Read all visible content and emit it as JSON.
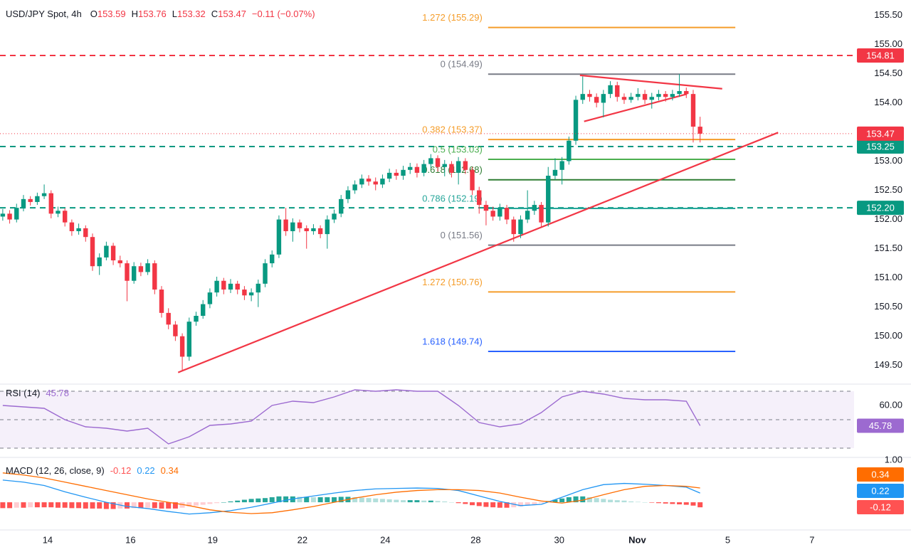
{
  "chart_data": [
    {
      "type": "candlestick",
      "symbol": "USD/JPY Spot, 4h",
      "header_labels": [
        "O",
        "H",
        "L",
        "C"
      ],
      "change": "−0.11 (−0.07%)",
      "up_color": "#089981",
      "down_color": "#f23645",
      "ohlc": [
        [
          152.05,
          152.18,
          151.98,
          152.1
        ],
        [
          152.1,
          152.16,
          151.93,
          152.0
        ],
        [
          152.0,
          152.27,
          151.95,
          152.2
        ],
        [
          152.2,
          152.42,
          152.14,
          152.35
        ],
        [
          152.35,
          152.4,
          152.24,
          152.3
        ],
        [
          152.3,
          152.46,
          152.25,
          152.4
        ],
        [
          152.4,
          152.6,
          152.35,
          152.45
        ],
        [
          152.45,
          152.5,
          152.02,
          152.1
        ],
        [
          152.1,
          152.22,
          152.04,
          152.15
        ],
        [
          152.15,
          152.19,
          151.88,
          151.95
        ],
        [
          151.95,
          152.0,
          151.72,
          151.8
        ],
        [
          151.8,
          151.93,
          151.74,
          151.85
        ],
        [
          151.85,
          151.9,
          151.62,
          151.7
        ],
        [
          151.7,
          151.76,
          151.12,
          151.2
        ],
        [
          151.2,
          151.42,
          151.05,
          151.35
        ],
        [
          151.35,
          151.62,
          151.3,
          151.55
        ],
        [
          151.55,
          151.6,
          151.22,
          151.3
        ],
        [
          151.3,
          151.38,
          151.18,
          151.25
        ],
        [
          151.25,
          151.3,
          150.6,
          150.95
        ],
        [
          150.95,
          151.27,
          150.9,
          151.2
        ],
        [
          151.2,
          151.26,
          151.03,
          151.1
        ],
        [
          151.1,
          151.32,
          151.05,
          151.25
        ],
        [
          151.25,
          151.3,
          150.72,
          150.8
        ],
        [
          150.8,
          150.86,
          150.32,
          150.4
        ],
        [
          150.4,
          150.48,
          150.12,
          150.2
        ],
        [
          150.2,
          150.26,
          149.92,
          150.0
        ],
        [
          150.0,
          150.05,
          149.42,
          149.65
        ],
        [
          149.65,
          150.32,
          149.58,
          150.25
        ],
        [
          150.25,
          150.42,
          150.18,
          150.35
        ],
        [
          150.35,
          150.62,
          150.3,
          150.55
        ],
        [
          150.55,
          150.82,
          150.48,
          150.75
        ],
        [
          150.75,
          151.02,
          150.68,
          150.95
        ],
        [
          150.95,
          151.0,
          150.72,
          150.8
        ],
        [
          150.8,
          150.98,
          150.74,
          150.9
        ],
        [
          150.9,
          150.95,
          150.72,
          150.8
        ],
        [
          150.8,
          150.86,
          150.62,
          150.7
        ],
        [
          150.7,
          150.82,
          150.6,
          150.75
        ],
        [
          150.75,
          150.97,
          150.5,
          150.9
        ],
        [
          150.9,
          151.32,
          150.84,
          151.25
        ],
        [
          151.25,
          151.47,
          151.18,
          151.4
        ],
        [
          151.4,
          152.07,
          151.34,
          152.0
        ],
        [
          152.0,
          152.2,
          151.72,
          151.8
        ],
        [
          151.8,
          152.02,
          151.62,
          151.95
        ],
        [
          151.95,
          152.0,
          151.78,
          151.85
        ],
        [
          151.85,
          151.9,
          151.5,
          151.8
        ],
        [
          151.8,
          151.92,
          151.74,
          151.85
        ],
        [
          151.85,
          151.9,
          151.68,
          151.75
        ],
        [
          151.75,
          152.07,
          151.5,
          152.0
        ],
        [
          152.0,
          152.17,
          151.94,
          152.1
        ],
        [
          152.1,
          152.42,
          152.04,
          152.35
        ],
        [
          152.35,
          152.57,
          152.28,
          152.5
        ],
        [
          152.5,
          152.67,
          152.44,
          152.6
        ],
        [
          152.6,
          152.77,
          152.54,
          152.7
        ],
        [
          152.7,
          152.76,
          152.58,
          152.65
        ],
        [
          152.65,
          152.72,
          152.5,
          152.6
        ],
        [
          152.6,
          152.77,
          152.54,
          152.7
        ],
        [
          152.7,
          152.87,
          152.64,
          152.8
        ],
        [
          152.8,
          152.86,
          152.68,
          152.75
        ],
        [
          152.75,
          152.92,
          152.68,
          152.85
        ],
        [
          152.85,
          152.97,
          152.78,
          152.9
        ],
        [
          152.9,
          152.96,
          152.72,
          152.8
        ],
        [
          152.8,
          153.02,
          152.74,
          152.95
        ],
        [
          152.95,
          153.12,
          152.88,
          153.05
        ],
        [
          153.05,
          153.1,
          152.82,
          152.9
        ],
        [
          152.9,
          153.02,
          152.74,
          152.95
        ],
        [
          152.95,
          153.0,
          152.72,
          152.8
        ],
        [
          152.8,
          153.07,
          152.6,
          153.0
        ],
        [
          153.0,
          153.05,
          152.78,
          152.85
        ],
        [
          152.85,
          152.9,
          152.42,
          152.5
        ],
        [
          152.5,
          152.56,
          152.1,
          152.25
        ],
        [
          152.25,
          152.32,
          151.9,
          152.15
        ],
        [
          152.15,
          152.22,
          151.98,
          152.05
        ],
        [
          152.05,
          152.27,
          151.98,
          152.2
        ],
        [
          152.2,
          152.25,
          151.92,
          152.0
        ],
        [
          152.0,
          152.05,
          151.62,
          151.75
        ],
        [
          151.75,
          152.07,
          151.68,
          152.0
        ],
        [
          152.0,
          152.5,
          151.94,
          152.15
        ],
        [
          152.15,
          152.32,
          152.08,
          152.25
        ],
        [
          152.25,
          152.3,
          151.88,
          151.95
        ],
        [
          151.95,
          152.9,
          151.88,
          152.75
        ],
        [
          152.75,
          153.05,
          152.68,
          152.85
        ],
        [
          152.85,
          153.07,
          152.6,
          153.0
        ],
        [
          153.0,
          153.42,
          152.94,
          153.35
        ],
        [
          153.35,
          154.12,
          153.28,
          154.05
        ],
        [
          154.05,
          154.45,
          153.98,
          154.15
        ],
        [
          154.15,
          154.22,
          154.02,
          154.1
        ],
        [
          154.1,
          154.16,
          153.92,
          154.0
        ],
        [
          154.0,
          154.22,
          153.75,
          154.15
        ],
        [
          154.15,
          154.37,
          154.08,
          154.3
        ],
        [
          154.3,
          154.36,
          154.02,
          154.1
        ],
        [
          154.1,
          154.16,
          153.98,
          154.05
        ],
        [
          154.05,
          154.17,
          154.0,
          154.1
        ],
        [
          154.1,
          154.25,
          154.04,
          154.15
        ],
        [
          154.15,
          154.22,
          153.98,
          154.05
        ],
        [
          154.05,
          154.17,
          153.9,
          154.1
        ],
        [
          154.1,
          154.22,
          154.04,
          154.15
        ],
        [
          154.15,
          154.2,
          154.02,
          154.1
        ],
        [
          154.1,
          154.22,
          154.04,
          154.15
        ],
        [
          154.15,
          154.49,
          154.1,
          154.2
        ],
        [
          154.2,
          154.26,
          154.08,
          154.15
        ],
        [
          154.15,
          154.22,
          153.32,
          153.59
        ],
        [
          153.59,
          153.76,
          153.32,
          153.47
        ]
      ],
      "xlim": [
        -0.4,
        123.3
      ],
      "xticks": [
        {
          "value": 6.5,
          "label": "14"
        },
        {
          "value": 18.5,
          "label": "16"
        },
        {
          "value": 30.4,
          "label": "19"
        },
        {
          "value": 43.4,
          "label": "22"
        },
        {
          "value": 55.4,
          "label": "24"
        },
        {
          "value": 68.5,
          "label": "28"
        },
        {
          "value": 80.6,
          "label": "30"
        },
        {
          "value": 91.9,
          "label": "Nov"
        },
        {
          "value": 105,
          "label": "5"
        },
        {
          "value": 117.2,
          "label": "7"
        }
      ],
      "ylim": [
        149.18,
        155.76
      ],
      "yticks": [
        {
          "value": 149.5,
          "label": "149.50"
        },
        {
          "value": 150,
          "label": "150.00"
        },
        {
          "value": 150.5,
          "label": "150.50"
        },
        {
          "value": 151,
          "label": "151.00"
        },
        {
          "value": 151.5,
          "label": "151.50"
        },
        {
          "value": 152,
          "label": "152.00"
        },
        {
          "value": 152.5,
          "label": "152.50"
        },
        {
          "value": 153,
          "label": "153.00"
        },
        {
          "value": 154,
          "label": "154.00"
        },
        {
          "value": 154.5,
          "label": "154.50"
        },
        {
          "value": 155,
          "label": "155.00"
        },
        {
          "value": 155.5,
          "label": "155.50"
        }
      ],
      "price_lines": [
        {
          "value": 154.81,
          "color": "#f23645"
        },
        {
          "value": 153.25,
          "color": "#089981"
        },
        {
          "value": {
            "value": 152.2,
            "label": "152.20"
          },
          "color": "#089981"
        }
      ],
      "fib": {
        "x_start": 70.3,
        "x_end": 106.1,
        "levels": [
          {
            "value": 155.29,
            "label": "1.272 (155.29)",
            "color": "#f59d2a"
          },
          {
            "value": 154.49,
            "label": "0 (154.49)",
            "color": "#787b86"
          },
          {
            "value": 153.37,
            "label": "0.382 (153.37)",
            "color": "#f59d2a"
          },
          {
            "value": 153.03,
            "label": "0.5 (153.03)",
            "color": "#4caf50"
          },
          {
            "value": 152.68,
            "label": "0.618 (152.68)",
            "color": "#2e7d32"
          },
          {
            "value": 152.19,
            "label": "0.786 (152.19)",
            "color": "#26a69a"
          },
          {
            "value": 151.56,
            "label": "0 (151.56)",
            "color": "#787b86"
          },
          {
            "value": 150.76,
            "label": "1.272 (150.76)",
            "color": "#f59d2a"
          },
          {
            "value": 149.74,
            "label": "1.618 (149.74)",
            "color": "#2962ff"
          }
        ]
      },
      "trend_lines": [
        {
          "points": [
            [
              25.4,
              149.38
            ],
            [
              112.3,
              153.49
            ]
          ],
          "color": "#f23645"
        },
        {
          "points": [
            [
              83.6,
              154.47
            ],
            [
              104.2,
              154.24
            ]
          ],
          "color": "#f23645"
        },
        {
          "points": [
            [
              84.2,
              153.68
            ],
            [
              99.1,
              154.15
            ]
          ],
          "color": "#f23645"
        }
      ]
    },
    {
      "type": "rsi",
      "title": "RSI (14)",
      "color": "#9c6ad0",
      "x": [
        0,
        3,
        6,
        9,
        12,
        15,
        18,
        21,
        24,
        27,
        30,
        33,
        36,
        39,
        42,
        45,
        48,
        51,
        54,
        57,
        60,
        63,
        66,
        69,
        72,
        75,
        78,
        81,
        84,
        87,
        90,
        93,
        96,
        99,
        101
      ],
      "values": [
        60,
        59,
        58,
        50,
        45,
        44,
        42,
        44,
        33,
        38,
        46,
        47,
        49,
        60,
        63,
        62,
        66,
        71,
        70,
        71,
        70,
        70,
        60,
        48,
        45,
        47,
        55,
        66,
        70,
        68,
        65,
        64,
        64,
        63,
        45.78
      ],
      "ylim": [
        23.5,
        75
      ],
      "yticks": [
        {
          "value": 60,
          "label": "60.00"
        }
      ],
      "levels": [
        70,
        50,
        30
      ]
    },
    {
      "type": "macd",
      "title": "MACD (12, 26, close, 9)",
      "x": [
        0,
        3,
        6,
        9,
        12,
        15,
        18,
        21,
        24,
        27,
        30,
        33,
        36,
        39,
        42,
        45,
        48,
        51,
        54,
        57,
        60,
        63,
        66,
        69,
        72,
        75,
        78,
        81,
        84,
        87,
        90,
        93,
        96,
        99,
        101
      ],
      "series": [
        {
          "color": "#2196f3",
          "values": [
            0.53,
            0.48,
            0.4,
            0.25,
            0.12,
            0.0,
            -0.1,
            -0.15,
            -0.22,
            -0.28,
            -0.25,
            -0.2,
            -0.12,
            -0.02,
            0.08,
            0.15,
            0.22,
            0.28,
            0.32,
            0.33,
            0.34,
            0.33,
            0.28,
            0.15,
            0.02,
            -0.08,
            -0.05,
            0.12,
            0.3,
            0.42,
            0.45,
            0.43,
            0.4,
            0.36,
            0.22
          ]
        },
        {
          "color": "#ff6d00",
          "values": [
            0.7,
            0.65,
            0.58,
            0.48,
            0.38,
            0.28,
            0.18,
            0.08,
            0.0,
            -0.08,
            -0.18,
            -0.24,
            -0.27,
            -0.25,
            -0.18,
            -0.1,
            0.0,
            0.1,
            0.18,
            0.24,
            0.28,
            0.3,
            0.3,
            0.28,
            0.22,
            0.12,
            0.03,
            -0.02,
            0.05,
            0.18,
            0.3,
            0.38,
            0.4,
            0.38,
            0.34
          ]
        }
      ],
      "histogram": [
        -0.14,
        -0.14,
        -0.13,
        -0.13,
        -0.12,
        -0.12,
        -0.12,
        -0.12,
        -0.13,
        -0.13,
        -0.14,
        -0.14,
        -0.15,
        -0.15,
        -0.15,
        -0.16,
        -0.16,
        -0.15,
        -0.15,
        -0.14,
        -0.14,
        -0.13,
        -0.14,
        -0.15,
        -0.15,
        -0.15,
        -0.13,
        -0.1,
        -0.08,
        -0.06,
        -0.04,
        -0.02,
        0.0,
        0.02,
        0.04,
        0.06,
        0.08,
        0.09,
        0.1,
        0.12,
        0.14,
        0.14,
        0.14,
        0.13,
        0.13,
        0.12,
        0.12,
        0.12,
        0.12,
        0.13,
        0.13,
        0.12,
        0.11,
        0.1,
        0.09,
        0.08,
        0.07,
        0.06,
        0.05,
        0.05,
        0.05,
        0.04,
        0.04,
        0.03,
        0.02,
        0.0,
        -0.02,
        -0.04,
        -0.07,
        -0.09,
        -0.11,
        -0.12,
        -0.13,
        -0.13,
        -0.12,
        -0.1,
        -0.08,
        -0.05,
        -0.02,
        0.03,
        0.06,
        0.09,
        0.12,
        0.14,
        0.14,
        0.12,
        0.1,
        0.08,
        0.06,
        0.05,
        0.04,
        0.02,
        0.01,
        0.0,
        -0.01,
        -0.02,
        -0.03,
        -0.04,
        -0.05,
        -0.06,
        -0.08,
        -0.12
      ],
      "histogram_colors": [
        "#26a69a",
        "#b2dfdb",
        "#ffcdd2",
        "#ff5252"
      ],
      "ylim": [
        -0.66,
        1.07
      ],
      "yticks": [
        {
          "value": 1,
          "label": "1.00"
        }
      ]
    }
  ]
}
